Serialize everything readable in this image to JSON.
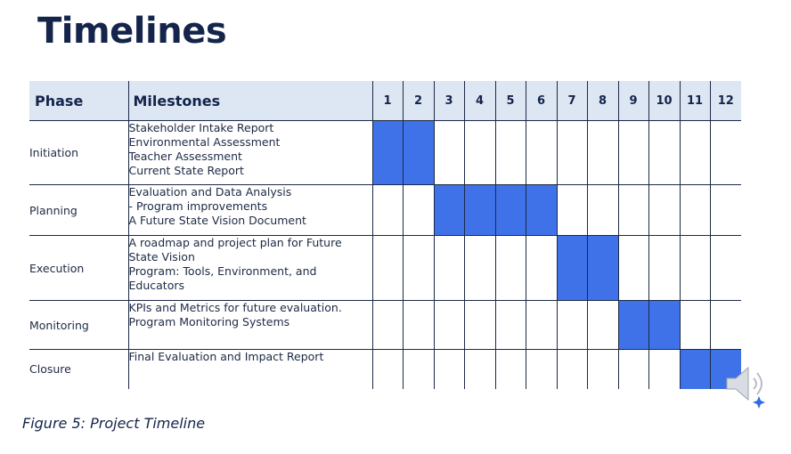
{
  "title": "Timelines",
  "table": {
    "headers": {
      "phase": "Phase",
      "milestones": "Milestones",
      "periods": [
        "1",
        "2",
        "3",
        "4",
        "5",
        "6",
        "7",
        "8",
        "9",
        "10",
        "11",
        "12"
      ]
    },
    "rows": [
      {
        "phase": "Initiation",
        "milestones": [
          "Stakeholder Intake Report",
          "Environmental Assessment",
          "Teacher Assessment",
          "Current State Report"
        ],
        "active_periods": [
          1,
          2
        ]
      },
      {
        "phase": "Planning",
        "milestones": [
          "Evaluation and Data Analysis",
          "- Program improvements",
          "A Future State Vision Document"
        ],
        "active_periods": [
          3,
          4,
          5,
          6
        ]
      },
      {
        "phase": "Execution",
        "milestones": [
          "A roadmap and project plan for Future",
          "State Vision",
          "Program: Tools, Environment, and",
          "Educators"
        ],
        "active_periods": [
          7,
          8
        ]
      },
      {
        "phase": "Monitoring",
        "milestones": [
          "KPIs and Metrics for future evaluation.",
          "Program Monitoring Systems"
        ],
        "active_periods": [
          9,
          10
        ]
      },
      {
        "phase": "Closure",
        "milestones": [
          "Final Evaluation and Impact Report"
        ],
        "active_periods": [
          11,
          12
        ]
      }
    ]
  },
  "caption": "Figure 5: Project Timeline",
  "colors": {
    "bar": "#3f72e8",
    "header_bg": "#dde6f3",
    "title": "#14244a"
  },
  "icons": [
    "speaker-icon"
  ]
}
